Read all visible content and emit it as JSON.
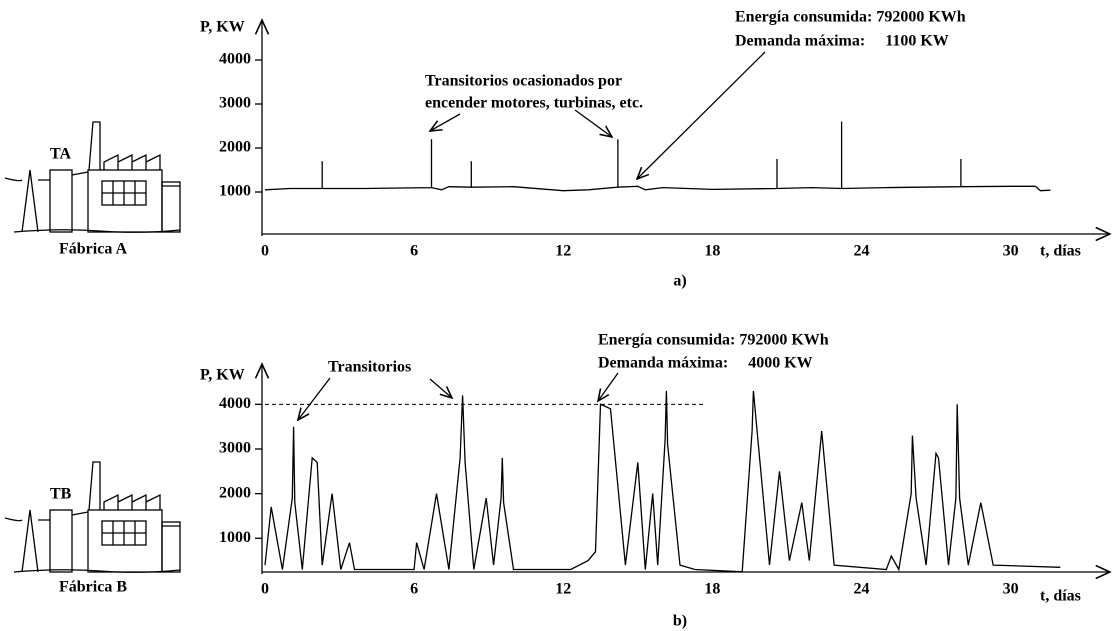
{
  "factories": [
    {
      "tag": "TA",
      "name": "Fábrica A"
    },
    {
      "tag": "TB",
      "name": "Fábrica B"
    }
  ],
  "chart_data": [
    {
      "type": "line",
      "caption": "a)",
      "y_label": "P, KW",
      "x_label": "t, días",
      "annotations": [
        "Transitorios ocasionados por",
        "encender motores, turbinas, etc.",
        "Energía consumida: 792000 KWh",
        "Demanda máxima:     1100 KW"
      ],
      "xlim": [
        0,
        34
      ],
      "xticks": [
        0,
        6,
        12,
        18,
        24,
        30
      ],
      "ylim": [
        0,
        4500
      ],
      "yticks": [
        1000,
        2000,
        3000,
        4000
      ],
      "color": "#000000",
      "x": [
        0,
        1,
        2.3,
        2.3,
        2.3,
        4,
        6.7,
        6.7,
        6.7,
        7.1,
        7.4,
        8.3,
        8.3,
        8.3,
        10,
        12,
        13,
        14.2,
        14.2,
        14.2,
        15,
        15.3,
        16,
        18,
        20.6,
        20.6,
        20.6,
        22,
        23.2,
        23.2,
        23.2,
        25,
        28,
        28,
        28,
        30,
        31,
        31.2,
        31.6
      ],
      "values": [
        1050,
        1080,
        1080,
        1700,
        1080,
        1080,
        1100,
        2200,
        1100,
        1050,
        1120,
        1110,
        1700,
        1110,
        1120,
        1030,
        1050,
        1110,
        2200,
        1110,
        1130,
        1050,
        1100,
        1060,
        1080,
        1750,
        1080,
        1100,
        1080,
        2600,
        1080,
        1100,
        1120,
        1750,
        1120,
        1130,
        1130,
        1030,
        1040
      ]
    },
    {
      "type": "line",
      "caption": "b)",
      "y_label": "P, KW",
      "x_label": "t, días",
      "annotations": [
        "Transitorios",
        "Energía consumida: 792000 KWh",
        "Demanda máxima:     4000 KW"
      ],
      "xlim": [
        0,
        34
      ],
      "xticks": [
        0,
        6,
        12,
        18,
        24,
        30
      ],
      "ylim": [
        200,
        4500
      ],
      "yticks": [
        1000,
        2000,
        3000,
        4000
      ],
      "color": "#000000",
      "reference_line": {
        "value": 4000,
        "x_end": 17.7
      },
      "x": [
        0,
        0.25,
        0.7,
        1.1,
        1.15,
        1.2,
        1.5,
        1.9,
        2.1,
        2.3,
        2.7,
        3.05,
        3.4,
        3.6,
        6.0,
        6.1,
        6.4,
        6.9,
        7.4,
        7.85,
        7.95,
        8.05,
        8.4,
        8.9,
        9.2,
        9.5,
        9.55,
        9.6,
        10.0,
        12.3,
        13.0,
        13.3,
        13.5,
        13.9,
        14.5,
        15.0,
        15.3,
        15.6,
        15.8,
        16.1,
        16.15,
        16.2,
        16.7,
        17.3,
        19.2,
        19.6,
        19.65,
        19.8,
        20.3,
        20.7,
        21.1,
        21.6,
        21.9,
        22.4,
        22.9,
        25.0,
        25.2,
        25.5,
        26.0,
        26.05,
        26.2,
        26.6,
        27.0,
        27.1,
        27.5,
        27.8,
        27.85,
        27.95,
        28.3,
        28.8,
        29.3,
        32.0
      ],
      "values": [
        400,
        1700,
        300,
        1900,
        3500,
        1800,
        300,
        2800,
        2700,
        400,
        2000,
        300,
        900,
        300,
        300,
        900,
        300,
        2000,
        300,
        2800,
        4200,
        2700,
        300,
        1900,
        400,
        1900,
        2800,
        1800,
        300,
        300,
        500,
        700,
        4000,
        3900,
        400,
        2700,
        300,
        2000,
        400,
        3200,
        4300,
        3100,
        400,
        300,
        250,
        3400,
        4300,
        3400,
        400,
        2500,
        500,
        1800,
        500,
        3400,
        400,
        300,
        600,
        300,
        2000,
        3300,
        1900,
        400,
        2900,
        2800,
        400,
        1900,
        4000,
        1900,
        400,
        1800,
        400,
        350
      ]
    }
  ]
}
